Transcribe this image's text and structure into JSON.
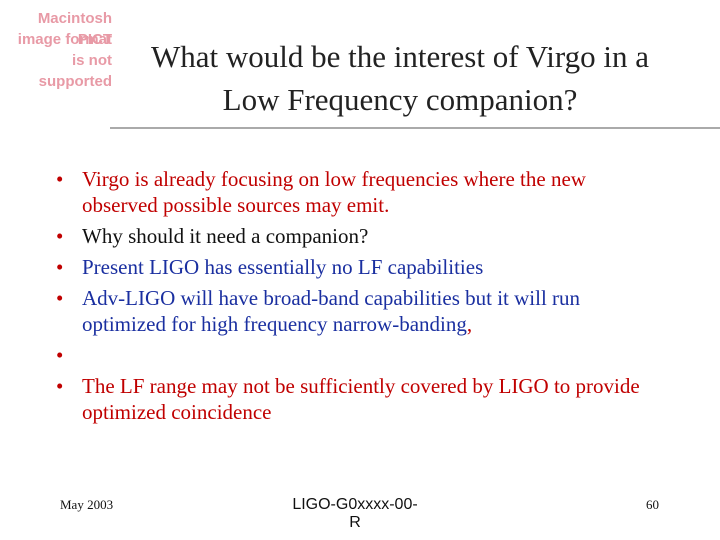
{
  "placeholder": [
    "Macintosh PICT",
    "image format",
    "is not supported"
  ],
  "title": [
    "What would be the interest of Virgo in a",
    "Low Frequency companion?"
  ],
  "bullets": [
    [
      "Virgo is already focusing on low frequencies where the new observed possible sources may emit."
    ],
    [
      "Why should it need a companion?"
    ],
    [
      "Present LIGO has essentially no LF capabilities"
    ],
    [
      "Adv-LIGO will have broad-band capabilities but it will run optimized for high frequency narrow-banding",
      ","
    ],
    [
      "The LF range may not be sufficiently covered by LIGO to provide optimized coincidence"
    ]
  ],
  "footer": {
    "date": "May 2003",
    "document": "LIGO-G0xxxx-00-R",
    "page": "60"
  }
}
